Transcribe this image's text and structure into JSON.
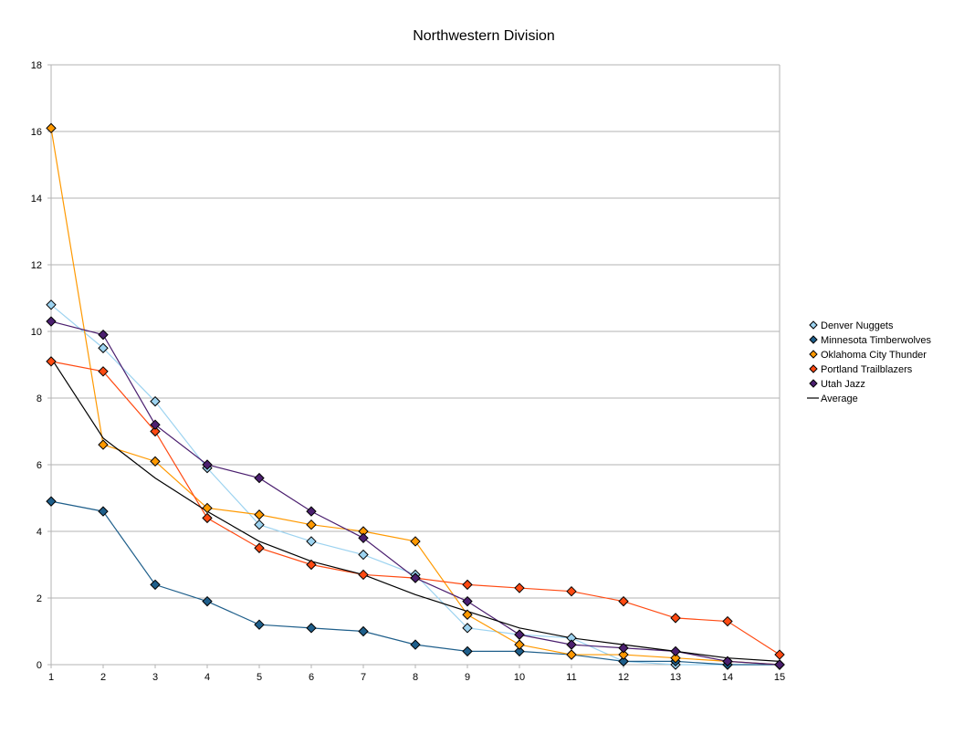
{
  "chart_data": {
    "type": "line",
    "title": "Northwestern Division",
    "xlabel": "",
    "ylabel": "",
    "x": [
      1,
      2,
      3,
      4,
      5,
      6,
      7,
      8,
      9,
      10,
      11,
      12,
      13,
      14,
      15
    ],
    "xlim": [
      1,
      15
    ],
    "ylim": [
      0,
      18
    ],
    "yticks": [
      0,
      2,
      4,
      6,
      8,
      10,
      12,
      14,
      16,
      18
    ],
    "grid": true,
    "legend": "right",
    "series": [
      {
        "name": "Denver Nuggets",
        "color": "#9dd3f0",
        "marker": "diamond",
        "values": [
          10.8,
          9.5,
          7.9,
          5.9,
          4.2,
          3.7,
          3.3,
          2.7,
          1.1,
          0.9,
          0.8,
          0.1,
          0.0,
          0.0,
          0.0
        ]
      },
      {
        "name": "Minnesota Timberwolves",
        "color": "#1f5f8b",
        "marker": "diamond",
        "values": [
          4.9,
          4.6,
          2.4,
          1.9,
          1.2,
          1.1,
          1.0,
          0.6,
          0.4,
          0.4,
          0.3,
          0.1,
          0.1,
          0.0,
          0.0
        ]
      },
      {
        "name": "Oklahoma City Thunder",
        "color": "#ff9900",
        "marker": "diamond",
        "values": [
          16.1,
          6.6,
          6.1,
          4.7,
          4.5,
          4.2,
          4.0,
          3.7,
          1.5,
          0.6,
          0.3,
          0.3,
          0.2,
          0.1,
          0.0
        ]
      },
      {
        "name": "Portland Trailblazers",
        "color": "#ff4a12",
        "marker": "diamond",
        "values": [
          9.1,
          8.8,
          7.0,
          4.4,
          3.5,
          3.0,
          2.7,
          2.6,
          2.4,
          2.3,
          2.2,
          1.9,
          1.4,
          1.3,
          0.3
        ]
      },
      {
        "name": "Utah Jazz",
        "color": "#4b1f6f",
        "marker": "diamond",
        "values": [
          10.3,
          9.9,
          7.2,
          6.0,
          5.6,
          4.6,
          3.8,
          2.6,
          1.9,
          0.9,
          0.6,
          0.5,
          0.4,
          0.1,
          0.0
        ]
      },
      {
        "name": "Average",
        "color": "#000000",
        "marker": "none",
        "values": [
          9.2,
          6.8,
          5.6,
          4.6,
          3.7,
          3.1,
          2.7,
          2.1,
          1.6,
          1.1,
          0.8,
          0.6,
          0.4,
          0.2,
          0.1
        ]
      }
    ]
  }
}
